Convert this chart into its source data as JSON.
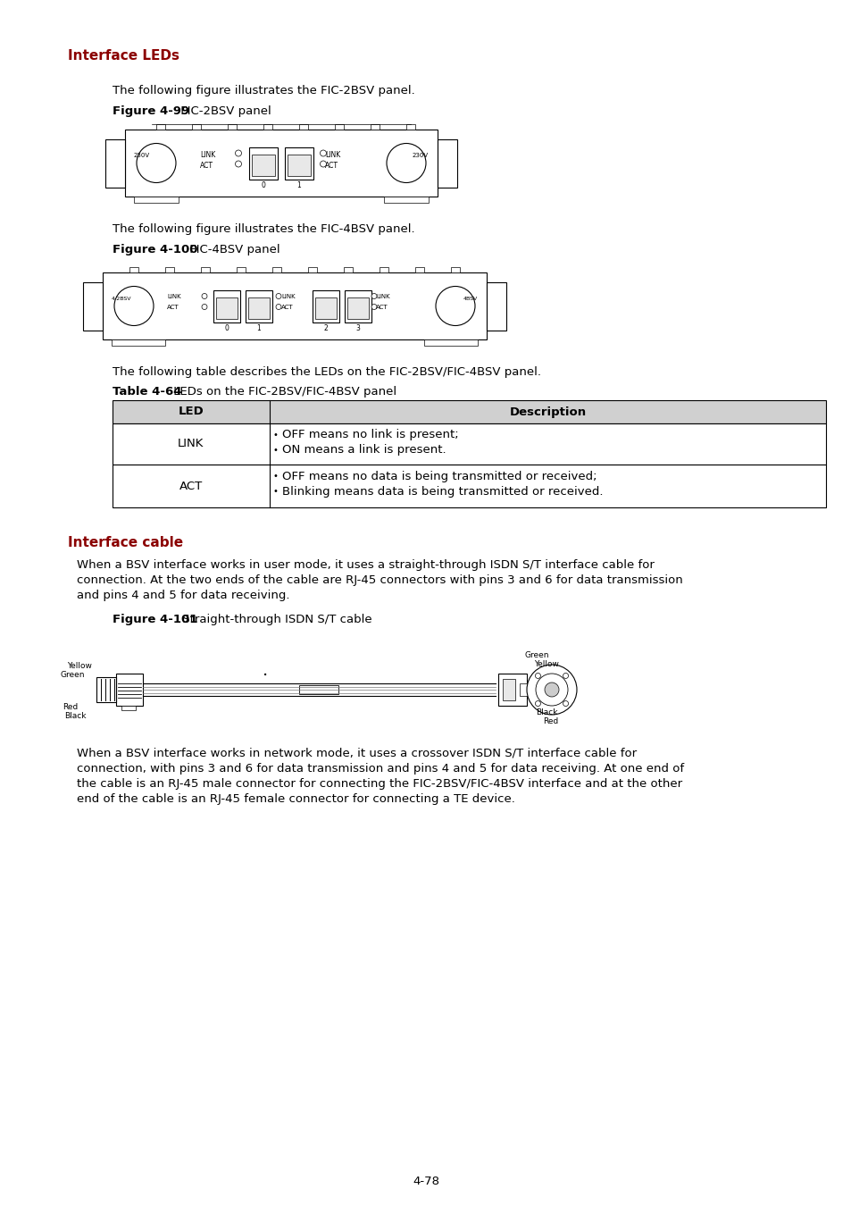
{
  "title_leds": "Interface LEDs",
  "title_cable": "Interface cable",
  "title_color": "#8B0000",
  "body_color": "#000000",
  "bg_color": "#ffffff",
  "fig_99_caption_bold": "Figure 4-99",
  "fig_99_caption_normal": " FIC-2BSV panel",
  "fig_100_caption_bold": "Figure 4-100",
  "fig_100_caption_normal": " FIC-4BSV panel",
  "fig_101_caption_bold": "Figure 4-101",
  "fig_101_caption_normal": " Straight-through ISDN S/T cable",
  "text1": "The following figure illustrates the FIC-2BSV panel.",
  "text2": "The following figure illustrates the FIC-4BSV panel.",
  "text3": "The following table describes the LEDs on the FIC-2BSV/FIC-4BSV panel.",
  "table_caption_bold": "Table 4-64",
  "table_caption_normal": " LEDs on the FIC-2BSV/FIC-4BSV panel",
  "table_header": [
    "LED",
    "Description"
  ],
  "table_rows": [
    [
      "LINK",
      "OFF means no link is present;\nON means a link is present."
    ],
    [
      "ACT",
      "OFF means no data is being transmitted or received;\nBlinking means data is being transmitted or received."
    ]
  ],
  "text4_lines": [
    "When a BSV interface works in user mode, it uses a straight-through ISDN S/T interface cable for",
    "connection. At the two ends of the cable are RJ-45 connectors with pins 3 and 6 for data transmission",
    "and pins 4 and 5 for data receiving."
  ],
  "text5_lines": [
    "When a BSV interface works in network mode, it uses a crossover ISDN S/T interface cable for",
    "connection, with pins 3 and 6 for data transmission and pins 4 and 5 for data receiving. At one end of",
    "the cable is an RJ-45 male connector for connecting the FIC-2BSV/FIC-4BSV interface and at the other",
    "end of the cable is an RJ-45 female connector for connecting a TE device."
  ],
  "page_number": "4-78",
  "font_size_body": 9.5,
  "font_size_title": 11,
  "header_bg": "#d0d0d0",
  "lm": 76,
  "im": 126,
  "rm": 925
}
